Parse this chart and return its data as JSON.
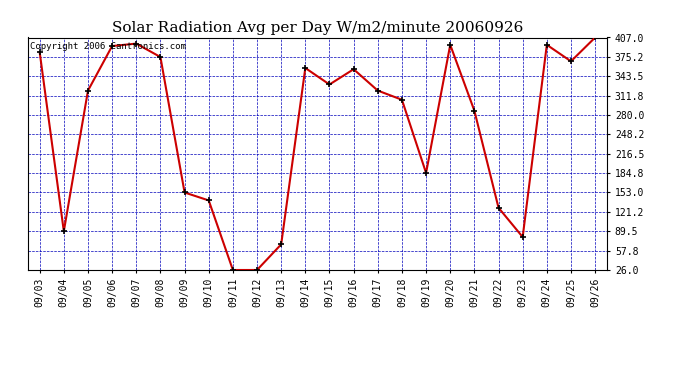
{
  "title": "Solar Radiation Avg per Day W/m2/minute 20060926",
  "copyright_text": "Copyright 2006 Cantronics.com",
  "dates": [
    "09/03",
    "09/04",
    "09/05",
    "09/06",
    "09/07",
    "09/08",
    "09/09",
    "09/10",
    "09/11",
    "09/12",
    "09/13",
    "09/14",
    "09/15",
    "09/16",
    "09/17",
    "09/18",
    "09/19",
    "09/20",
    "09/21",
    "09/22",
    "09/23",
    "09/24",
    "09/25",
    "09/26"
  ],
  "values": [
    383,
    89.5,
    320,
    393,
    397,
    375,
    153,
    140,
    26,
    26,
    68,
    357,
    330,
    355,
    320,
    305,
    185,
    395,
    287,
    128,
    80,
    395,
    368,
    407
  ],
  "line_color": "#cc0000",
  "marker_color": "#000000",
  "bg_color": "#ffffff",
  "plot_bg_color": "#ffffff",
  "grid_color": "#0000bb",
  "ylim": [
    26.0,
    407.0
  ],
  "yticks": [
    26.0,
    57.8,
    89.5,
    121.2,
    153.0,
    184.8,
    216.5,
    248.2,
    280.0,
    311.8,
    343.5,
    375.2,
    407.0
  ],
  "title_fontsize": 11,
  "axis_fontsize": 7,
  "copyright_fontsize": 6.5,
  "figwidth": 6.9,
  "figheight": 3.75,
  "dpi": 100
}
